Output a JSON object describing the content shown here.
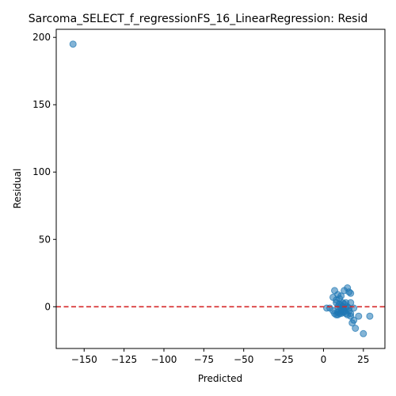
{
  "chart_data": {
    "type": "scatter",
    "title": "Sarcoma_SELECT_f_regressionFS_16_LinearRegression: Resid",
    "xlabel": "Predicted",
    "ylabel": "Residual",
    "xlim": [
      -167.5,
      38.5
    ],
    "ylim": [
      -31,
      206
    ],
    "xticks": [
      -150,
      -125,
      -100,
      -75,
      -50,
      -25,
      0,
      25
    ],
    "xtick_labels": [
      "−150",
      "−125",
      "−100",
      "−75",
      "−50",
      "−25",
      "0",
      "25"
    ],
    "yticks": [
      0,
      50,
      100,
      150,
      200
    ],
    "ytick_labels": [
      "0",
      "50",
      "100",
      "150",
      "200"
    ],
    "point_color": "#1f77b4",
    "reference_line": {
      "y": 0,
      "color": "#d62728",
      "style": "dashed"
    },
    "grid": false,
    "points": [
      {
        "x": -157,
        "y": 195
      },
      {
        "x": 2,
        "y": -1
      },
      {
        "x": 4,
        "y": -1
      },
      {
        "x": 6,
        "y": -3
      },
      {
        "x": 6,
        "y": 7
      },
      {
        "x": 7,
        "y": 12
      },
      {
        "x": 7,
        "y": -5
      },
      {
        "x": 8,
        "y": 3
      },
      {
        "x": 8,
        "y": -6
      },
      {
        "x": 8,
        "y": 5
      },
      {
        "x": 9,
        "y": 9
      },
      {
        "x": 9,
        "y": 0
      },
      {
        "x": 9,
        "y": -4
      },
      {
        "x": 9,
        "y": -6
      },
      {
        "x": 10,
        "y": 2
      },
      {
        "x": 10,
        "y": -2
      },
      {
        "x": 10,
        "y": -5
      },
      {
        "x": 10,
        "y": 6
      },
      {
        "x": 11,
        "y": 1
      },
      {
        "x": 11,
        "y": -3
      },
      {
        "x": 11,
        "y": 8
      },
      {
        "x": 11,
        "y": -5
      },
      {
        "x": 12,
        "y": 0
      },
      {
        "x": 12,
        "y": 3
      },
      {
        "x": 12,
        "y": -2
      },
      {
        "x": 12,
        "y": -4
      },
      {
        "x": 13,
        "y": 2
      },
      {
        "x": 13,
        "y": -3
      },
      {
        "x": 13,
        "y": 12
      },
      {
        "x": 14,
        "y": -1
      },
      {
        "x": 14,
        "y": 3
      },
      {
        "x": 14,
        "y": -5
      },
      {
        "x": 15,
        "y": 14
      },
      {
        "x": 15,
        "y": 0
      },
      {
        "x": 15,
        "y": -6
      },
      {
        "x": 16,
        "y": -3
      },
      {
        "x": 16,
        "y": 11
      },
      {
        "x": 16,
        "y": -1
      },
      {
        "x": 17,
        "y": 10
      },
      {
        "x": 17,
        "y": 3
      },
      {
        "x": 17,
        "y": -5
      },
      {
        "x": 17,
        "y": -7
      },
      {
        "x": 18,
        "y": -12
      },
      {
        "x": 19,
        "y": -10
      },
      {
        "x": 19,
        "y": -1
      },
      {
        "x": 20,
        "y": -16
      },
      {
        "x": 22,
        "y": -7
      },
      {
        "x": 25,
        "y": -20
      },
      {
        "x": 29,
        "y": -7
      },
      {
        "x": 13,
        "y": -4
      },
      {
        "x": 11,
        "y": -1
      }
    ]
  }
}
